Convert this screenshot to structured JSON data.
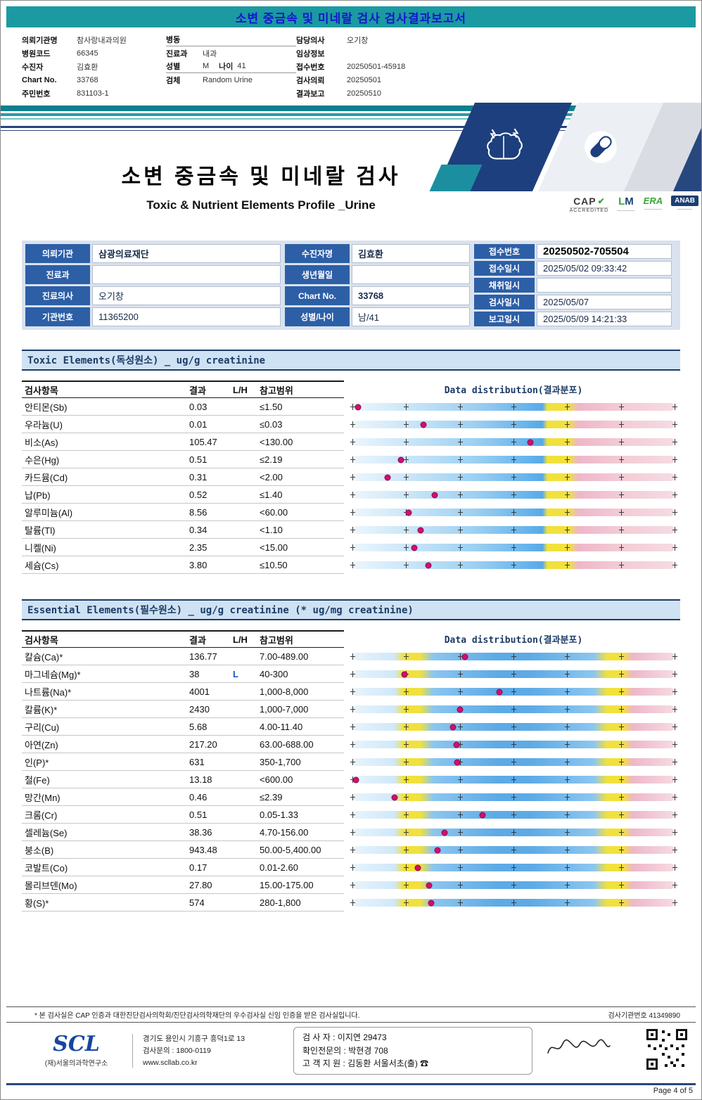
{
  "page": {
    "top_title": "소변 중금속 및 미네랄 검사 검사결과보고서",
    "page_number": "Page 4 of 5"
  },
  "patient_header": {
    "col1": [
      {
        "label": "의뢰기관명",
        "value": "참사랑내과의원"
      },
      {
        "label": "병원코드",
        "value": "66345"
      },
      {
        "label": "수진자",
        "value": "김효환"
      },
      {
        "label": "Chart No.",
        "value": "33768"
      },
      {
        "label": "주민번호",
        "value": "831103-1"
      }
    ],
    "col2": [
      {
        "label": "병동",
        "value": ""
      },
      {
        "label": "진료과",
        "value": "내과"
      },
      {
        "label": "성별",
        "value": "M",
        "label2": "나이",
        "value2": "41"
      },
      {
        "label": "검체",
        "value": "Random Urine"
      }
    ],
    "col3": [
      {
        "label": "담당의사",
        "value": "오기창"
      },
      {
        "label": "임상정보",
        "value": ""
      },
      {
        "label": "접수번호",
        "value": "20250501-45918"
      },
      {
        "label": "검사의뢰",
        "value": "20250501"
      },
      {
        "label": "결과보고",
        "value": "20250510"
      }
    ]
  },
  "report_title": {
    "korean": "소변 중금속 및 미네랄 검사",
    "english": "Toxic & Nutrient Elements Profile _Urine"
  },
  "accreditations": [
    {
      "title": "CAP",
      "subtitle": "ACCREDITED"
    },
    {
      "title": "LM",
      "subtitle": ""
    },
    {
      "title": "ERA",
      "subtitle": ""
    },
    {
      "title": "ANAB",
      "subtitle": ""
    }
  ],
  "info_table": {
    "left": [
      {
        "label": "의뢰기관",
        "value": "삼광의료재단"
      },
      {
        "label": "진료과",
        "value": ""
      },
      {
        "label": "진료의사",
        "value": "오기창"
      },
      {
        "label": "기관번호",
        "value": "11365200"
      }
    ],
    "middle": [
      {
        "label": "수진자명",
        "value": "김효환"
      },
      {
        "label": "생년월일",
        "value": ""
      },
      {
        "label": "Chart No.",
        "value": "33768"
      },
      {
        "label": "성별/나이",
        "value": "남/41"
      }
    ],
    "right": [
      {
        "label": "접수번호",
        "value": "20250502-705504"
      },
      {
        "label": "접수일시",
        "value": "2025/05/02 09:33:42"
      },
      {
        "label": "채취일시",
        "value": ""
      },
      {
        "label": "검사일시",
        "value": "2025/05/07"
      },
      {
        "label": "보고일시",
        "value": "2025/05/09 14:21:33"
      }
    ]
  },
  "table_headers": {
    "item": "검사항목",
    "result": "결과",
    "flag": "L/H",
    "range": "참고범위",
    "distribution": "Data distribution(결과분포)"
  },
  "toxic_section": {
    "title": "Toxic Elements(독성원소) _ ug/g creatinine",
    "rows": [
      {
        "name": "안티몬(Sb)",
        "result": "0.03",
        "flag": "",
        "range": "≤1.50",
        "pos": 0.017
      },
      {
        "name": "우라늄(U)",
        "result": "0.01",
        "flag": "",
        "range": "≤0.03",
        "pos": 0.221
      },
      {
        "name": "비소(As)",
        "result": "105.47",
        "flag": "",
        "range": "<130.00",
        "pos": 0.552
      },
      {
        "name": "수은(Hg)",
        "result": "0.51",
        "flag": "",
        "range": "≤2.19",
        "pos": 0.15
      },
      {
        "name": "카드뮴(Cd)",
        "result": "0.31",
        "flag": "",
        "range": "<2.00",
        "pos": 0.11
      },
      {
        "name": "납(Pb)",
        "result": "0.52",
        "flag": "",
        "range": "≤1.40",
        "pos": 0.255
      },
      {
        "name": "알루미늄(Al)",
        "result": "8.56",
        "flag": "",
        "range": "<60.00",
        "pos": 0.174
      },
      {
        "name": "탈륨(Tl)",
        "result": "0.34",
        "flag": "",
        "range": "<1.10",
        "pos": 0.212
      },
      {
        "name": "니켈(Ni)",
        "result": "2.35",
        "flag": "",
        "range": "<15.00",
        "pos": 0.193
      },
      {
        "name": "세슘(Cs)",
        "result": "3.80",
        "flag": "",
        "range": "≤10.50",
        "pos": 0.236
      }
    ]
  },
  "essential_section": {
    "title": "Essential Elements(필수원소) _ ug/g creatinine (* ug/mg creatinine)",
    "rows": [
      {
        "name": "칼슘(Ca)*",
        "result": "136.77",
        "flag": "",
        "range": "7.00-489.00",
        "pos": 0.35
      },
      {
        "name": "마그네슘(Mg)*",
        "result": "38",
        "flag": "L",
        "range": "40-300",
        "pos": 0.162
      },
      {
        "name": "나트륨(Na)*",
        "result": "4001",
        "flag": "",
        "range": "1,000-8,000",
        "pos": 0.457
      },
      {
        "name": "칼륨(K)*",
        "result": "2430",
        "flag": "",
        "range": "1,000-7,000",
        "pos": 0.333
      },
      {
        "name": "구리(Cu)",
        "result": "5.68",
        "flag": "",
        "range": "4.00-11.40",
        "pos": 0.312
      },
      {
        "name": "아연(Zn)",
        "result": "217.20",
        "flag": "",
        "range": "63.00-688.00",
        "pos": 0.324
      },
      {
        "name": "인(P)*",
        "result": "631",
        "flag": "",
        "range": "350-1,700",
        "pos": 0.326
      },
      {
        "name": "철(Fe)",
        "result": "13.18",
        "flag": "",
        "range": "<600.00",
        "pos": 0.012
      },
      {
        "name": "망간(Mn)",
        "result": "0.46",
        "flag": "",
        "range": "≤2.39",
        "pos": 0.131
      },
      {
        "name": "크롬(Cr)",
        "result": "0.51",
        "flag": "",
        "range": "0.05-1.33",
        "pos": 0.405
      },
      {
        "name": "셀레늄(Se)",
        "result": "38.36",
        "flag": "",
        "range": "4.70-156.00",
        "pos": 0.286
      },
      {
        "name": "붕소(B)",
        "result": "943.48",
        "flag": "",
        "range": "50.00-5,400.00",
        "pos": 0.264
      },
      {
        "name": "코발트(Co)",
        "result": "0.17",
        "flag": "",
        "range": "0.01-2.60",
        "pos": 0.202
      },
      {
        "name": "몰리브덴(Mo)",
        "result": "27.80",
        "flag": "",
        "range": "15.00-175.00",
        "pos": 0.238
      },
      {
        "name": "황(S)*",
        "result": "574",
        "flag": "",
        "range": "280-1,800",
        "pos": 0.245
      }
    ]
  },
  "footer": {
    "disclaimer": "* 본 검사실은 CAP 인증과 대한진단검사의학회/진단검사의학재단의 우수검사실 신임 인증을 받은 검사실입니다.",
    "lab_number": "검사기관번호 41349890",
    "scl_name": "SCL",
    "scl_org": "(재)서울의과학연구소",
    "address": "경기도 용인시 기흥구 흥덕1로 13",
    "inquiry": "검사문의 : 1800-0119",
    "website": "www.scllab.co.kr",
    "examiner": "검  사  자 :  이지연 29473",
    "reviewer": "확인전문의 :  박현경 708",
    "support": "고 객 지 원 :  김동환 서울서초(출) ☎"
  }
}
